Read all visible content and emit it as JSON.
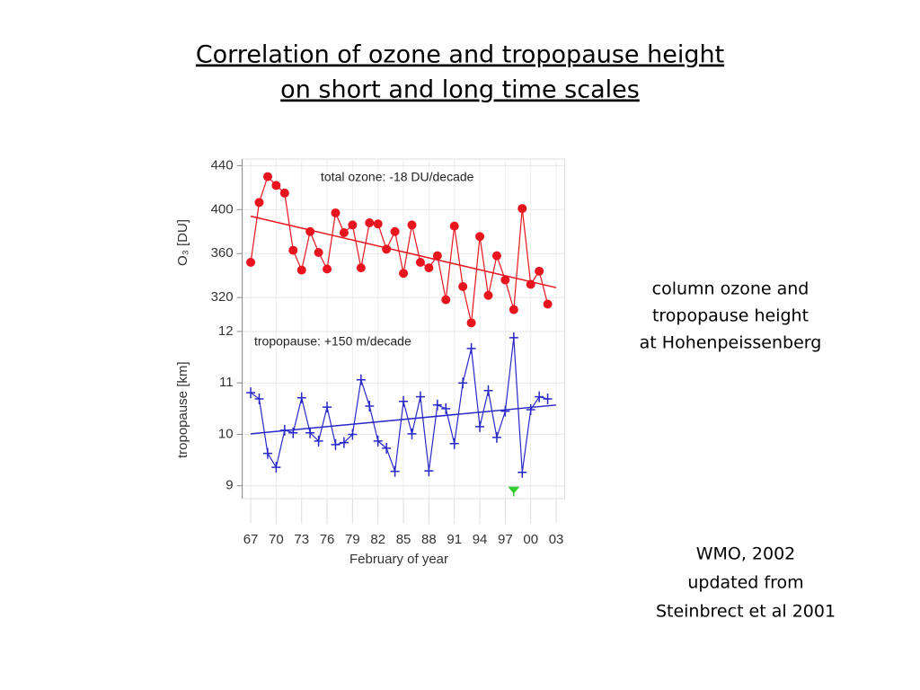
{
  "title": [
    "Correlation of ozone and tropopause height",
    "on short and long time scales"
  ],
  "notes": [
    [
      "column ozone and",
      "tropopause height",
      "at Hohenpeissenberg"
    ],
    [
      "WMO, 2002",
      "updated from",
      "Steinbrect et al 2001"
    ]
  ],
  "chart_data": [
    {
      "type": "line",
      "ylabel": "O₃ [DU]",
      "annotation": "total ozone: -18 DU/decade",
      "x": [
        1967,
        1968,
        1969,
        1970,
        1971,
        1972,
        1973,
        1974,
        1975,
        1976,
        1977,
        1978,
        1979,
        1980,
        1981,
        1982,
        1983,
        1984,
        1985,
        1986,
        1987,
        1988,
        1989,
        1990,
        1991,
        1992,
        1993,
        1994,
        1995,
        1996,
        1997,
        1998,
        1999,
        2000,
        2001,
        2002
      ],
      "series": [
        {
          "name": "total ozone",
          "color": "#e8141e",
          "marker": "circle",
          "values": [
            352,
            406.5,
            430,
            422,
            415,
            363,
            345,
            380,
            361,
            346,
            397,
            379,
            386,
            347,
            388,
            387,
            364,
            380,
            342,
            386,
            352,
            347,
            358,
            318,
            385,
            330,
            297,
            375.5,
            322,
            358,
            336,
            309,
            401,
            332,
            344,
            314
          ]
        }
      ],
      "trend": {
        "x": [
          1967,
          2003
        ],
        "values": [
          394,
          329
        ]
      },
      "xlim": [
        1966,
        2004
      ],
      "ylim": [
        294,
        446
      ],
      "yticks": [
        320,
        360,
        400,
        440
      ],
      "grid": true
    },
    {
      "type": "line",
      "ylabel": "tropopause [km]",
      "xlabel": "February of year",
      "annotation": "tropopause: +150 m/decade",
      "x": [
        1967,
        1968,
        1969,
        1970,
        1971,
        1972,
        1973,
        1974,
        1975,
        1976,
        1977,
        1978,
        1979,
        1980,
        1981,
        1982,
        1983,
        1984,
        1985,
        1986,
        1987,
        1988,
        1989,
        1990,
        1991,
        1992,
        1993,
        1994,
        1995,
        1996,
        1997,
        1998,
        1999,
        2000,
        2001,
        2002
      ],
      "series": [
        {
          "name": "tropopause",
          "color": "#2828c8",
          "marker": "plus",
          "values": [
            10.81,
            10.69,
            9.63,
            9.36,
            10.08,
            10.03,
            10.71,
            10.03,
            9.87,
            10.53,
            9.8,
            9.84,
            10.0,
            11.06,
            10.55,
            9.87,
            9.73,
            9.28,
            10.64,
            10.01,
            10.73,
            9.29,
            10.57,
            10.5,
            9.82,
            11.0,
            11.67,
            10.15,
            10.85,
            9.94,
            10.45,
            11.88,
            9.26,
            10.48,
            10.73,
            10.69
          ]
        }
      ],
      "trend": {
        "x": [
          1967,
          2003
        ],
        "values": [
          10.01,
          10.57
        ]
      },
      "highlight": {
        "x": 1998,
        "value": 8.9,
        "color": "#33cc33"
      },
      "xlim": [
        1966,
        2004
      ],
      "ylim": [
        8.75,
        12.2
      ],
      "yticks": [
        9,
        10,
        11,
        12
      ],
      "xticks": [
        {
          "value": 1967,
          "label": "67"
        },
        {
          "value": 1970,
          "label": "70"
        },
        {
          "value": 1973,
          "label": "73"
        },
        {
          "value": 1976,
          "label": "76"
        },
        {
          "value": 1979,
          "label": "79"
        },
        {
          "value": 1982,
          "label": "82"
        },
        {
          "value": 1985,
          "label": "85"
        },
        {
          "value": 1988,
          "label": "88"
        },
        {
          "value": 1991,
          "label": "91"
        },
        {
          "value": 1994,
          "label": "94"
        },
        {
          "value": 1997,
          "label": "97"
        },
        {
          "value": 2000,
          "label": "00"
        },
        {
          "value": 2003,
          "label": "03"
        }
      ],
      "grid": true
    }
  ]
}
